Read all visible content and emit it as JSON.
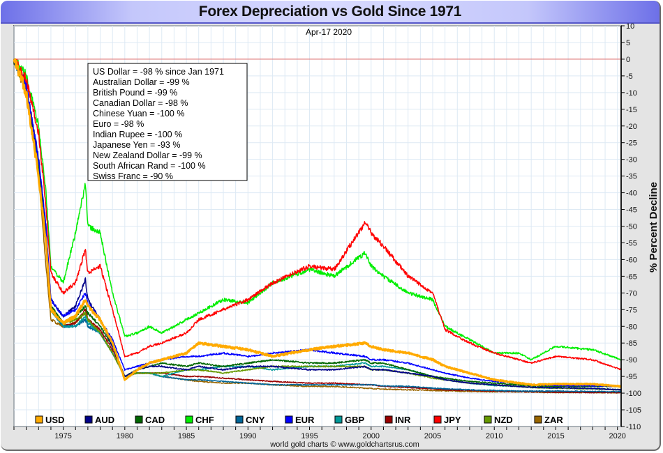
{
  "chart_data": {
    "type": "line",
    "title": "Forex Depreciation vs Gold Since 1971",
    "subtitle": "Apr-17  2020",
    "xlabel": "",
    "ylabel": "% Percent Decline",
    "credit": "world gold charts © www.goldchartsrus.com",
    "xlim": [
      1971.0,
      2020.3
    ],
    "ylim": [
      -110,
      10
    ],
    "x_ticks": [
      1975,
      1980,
      1985,
      1990,
      1995,
      2000,
      2005,
      2010,
      2015,
      2020
    ],
    "y_ticks": [
      10,
      5,
      0,
      -5,
      -10,
      -15,
      -20,
      -25,
      -30,
      -35,
      -40,
      -45,
      -50,
      -55,
      -60,
      -65,
      -70,
      -75,
      -80,
      -85,
      -90,
      -95,
      -100,
      -105,
      -110
    ],
    "reference_line": {
      "y": 0,
      "color": "#e06060"
    },
    "grid": true,
    "legend_position": "bottom",
    "summary_box": {
      "lines": [
        "US Dollar = -98 %  since Jan 1971",
        "Australian Dollar = -99 %",
        "British Pound = -99 %",
        "Canadian Dollar = -98 %",
        "Chinese Yuan = -100 %",
        "Euro = -98 %",
        "Indian Rupee = -100 %",
        "Japanese Yen = -93 %",
        "New Zealand Dollar = -99 %",
        "South African Rand = -100 %",
        "Swiss Franc = -90 %"
      ]
    },
    "x": [
      1971.0,
      1972.0,
      1973.0,
      1973.6,
      1974.0,
      1975.0,
      1976.0,
      1976.8,
      1977.0,
      1978.0,
      1979.0,
      1980.0,
      1981.0,
      1982.0,
      1983.0,
      1985.0,
      1986.0,
      1988.0,
      1990.0,
      1992.0,
      1995.0,
      1997.0,
      1999.5,
      2000.0,
      2001.0,
      2003.0,
      2005.0,
      2006.0,
      2008.0,
      2010.0,
      2012.0,
      2013.0,
      2015.0,
      2018.0,
      2020.3
    ],
    "series": [
      {
        "name": "USD",
        "color": "#ffaa00",
        "width": 3,
        "values": [
          0,
          -10,
          -35,
          -55,
          -75,
          -79,
          -77,
          -72,
          -74,
          -78,
          -85,
          -96,
          -93,
          -91,
          -90,
          -88,
          -85,
          -86,
          -87,
          -89,
          -87,
          -86,
          -85,
          -86,
          -87,
          -88,
          -90,
          -92,
          -94,
          -96,
          -97,
          -97.5,
          -97.3,
          -97.3,
          -98
        ]
      },
      {
        "name": "AUD",
        "color": "#000088",
        "width": 1.5,
        "values": [
          0,
          -8,
          -30,
          -50,
          -72,
          -77,
          -74,
          -66,
          -72,
          -78,
          -86,
          -95,
          -93,
          -92,
          -92,
          -93,
          -92,
          -93,
          -92,
          -92,
          -93,
          -93,
          -92,
          -93,
          -93,
          -94,
          -95,
          -96,
          -97,
          -97.5,
          -98,
          -98.2,
          -98.4,
          -98.6,
          -99
        ]
      },
      {
        "name": "CAD",
        "color": "#006600",
        "width": 1.5,
        "values": [
          0,
          -9,
          -32,
          -52,
          -74,
          -79,
          -77,
          -74,
          -76,
          -80,
          -86,
          -95,
          -93,
          -92,
          -91,
          -92,
          -91,
          -92,
          -91,
          -90,
          -91,
          -91,
          -90,
          -91,
          -91,
          -93,
          -95,
          -95.5,
          -96.5,
          -97,
          -97.5,
          -97.8,
          -98,
          -98,
          -98
        ]
      },
      {
        "name": "CHF",
        "color": "#00ee00",
        "width": 1.5,
        "values": [
          0,
          -5,
          -20,
          -40,
          -62,
          -67,
          -52,
          -37,
          -50,
          -52,
          -70,
          -83,
          -82,
          -80,
          -82,
          -78,
          -76,
          -72,
          -73,
          -67,
          -63,
          -65,
          -58,
          -62,
          -65,
          -70,
          -72,
          -80,
          -84,
          -88,
          -88,
          -90,
          -86,
          -87,
          -90
        ]
      },
      {
        "name": "CNY",
        "color": "#006699",
        "width": 1.5,
        "values": [
          0,
          -9,
          -33,
          -54,
          -75,
          -80,
          -80,
          -78,
          -80,
          -82,
          -88,
          -95,
          -94,
          -94,
          -95,
          -96,
          -96,
          -96.5,
          -97,
          -97.5,
          -97.5,
          -97.5,
          -97.5,
          -97.5,
          -97.8,
          -98,
          -98.5,
          -98.7,
          -99,
          -99.2,
          -99.4,
          -99.4,
          -99.4,
          -99.5,
          -99.6
        ]
      },
      {
        "name": "EUR",
        "color": "#0000ff",
        "width": 1.5,
        "values": [
          0,
          -8,
          -30,
          -50,
          -72,
          -77,
          -75,
          -70,
          -73,
          -78,
          -84,
          -93,
          -92,
          -91,
          -90,
          -89,
          -89,
          -88,
          -89,
          -88,
          -87,
          -88,
          -89,
          -90,
          -90,
          -91,
          -93,
          -94,
          -95.5,
          -96.5,
          -97,
          -97.5,
          -97.7,
          -97.8,
          -98
        ]
      },
      {
        "name": "GBP",
        "color": "#009999",
        "width": 1.5,
        "values": [
          0,
          -9,
          -33,
          -54,
          -75,
          -80,
          -80,
          -77,
          -79,
          -82,
          -88,
          -95,
          -94,
          -94,
          -95,
          -93,
          -93,
          -92,
          -92,
          -93,
          -92,
          -92,
          -91,
          -92,
          -92,
          -93,
          -95,
          -96,
          -97,
          -97.7,
          -98,
          -98.3,
          -98.5,
          -98.7,
          -99
        ]
      },
      {
        "name": "INR",
        "color": "#990000",
        "width": 1.5,
        "values": [
          0,
          -9,
          -33,
          -54,
          -75,
          -80,
          -79,
          -75,
          -78,
          -81,
          -87,
          -95,
          -94,
          -94,
          -94,
          -95,
          -95,
          -95.5,
          -96,
          -96.5,
          -97,
          -97,
          -97.5,
          -97.5,
          -98,
          -98.3,
          -98.7,
          -99,
          -99.2,
          -99.4,
          -99.5,
          -99.6,
          -99.7,
          -99.8,
          -99.8
        ]
      },
      {
        "name": "JPY",
        "color": "#ff0000",
        "width": 1.5,
        "values": [
          0,
          -6,
          -22,
          -44,
          -64,
          -70,
          -67,
          -57,
          -64,
          -62,
          -75,
          -89,
          -88,
          -86,
          -85,
          -82,
          -78,
          -75,
          -72,
          -67,
          -62,
          -63,
          -49,
          -52,
          -56,
          -65,
          -70,
          -81,
          -85,
          -88,
          -90,
          -91,
          -89,
          -90,
          -93
        ]
      },
      {
        "name": "NZD",
        "color": "#669900",
        "width": 1.5,
        "values": [
          0,
          -9,
          -32,
          -52,
          -74,
          -79,
          -78,
          -76,
          -78,
          -82,
          -88,
          -95,
          -94,
          -94,
          -94,
          -93,
          -93,
          -94,
          -93,
          -92,
          -92,
          -92,
          -92,
          -93,
          -93,
          -94,
          -95.5,
          -96,
          -97,
          -97.5,
          -98,
          -98.3,
          -98.5,
          -98.7,
          -99
        ]
      },
      {
        "name": "ZAR",
        "color": "#996600",
        "width": 1.5,
        "values": [
          0,
          -10,
          -35,
          -62,
          -78,
          -80,
          -79,
          -76,
          -78,
          -82,
          -88,
          -95,
          -94,
          -94,
          -95,
          -96,
          -96.5,
          -97,
          -97,
          -97.5,
          -98,
          -98,
          -98.5,
          -98.6,
          -98.8,
          -99,
          -99.2,
          -99.3,
          -99.5,
          -99.6,
          -99.6,
          -99.7,
          -99.8,
          -99.8,
          -99.9
        ]
      }
    ]
  }
}
